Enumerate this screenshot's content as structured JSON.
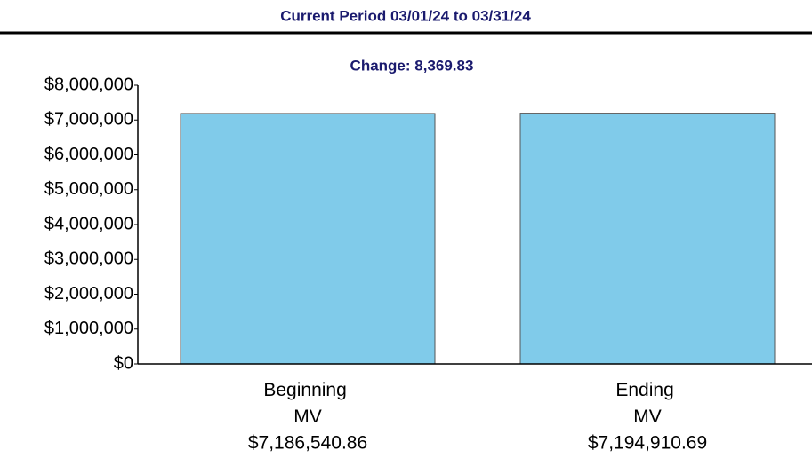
{
  "chart_data": {
    "type": "bar",
    "title": "Current Period 03/01/24 to 03/31/24",
    "subtitle": "Change: 8,369.83",
    "categories": [
      "Beginning MV",
      "Ending MV"
    ],
    "values": [
      7186540.86,
      7194910.69
    ],
    "value_labels": [
      "$7,186,540.86",
      "$7,194,910.69"
    ],
    "color": "#80cbea",
    "ylim": [
      0,
      8000000
    ],
    "yticks": [
      {
        "value": 0,
        "label": "$0"
      },
      {
        "value": 1000000,
        "label": "$1,000,000"
      },
      {
        "value": 2000000,
        "label": "$2,000,000"
      },
      {
        "value": 3000000,
        "label": "$3,000,000"
      },
      {
        "value": 4000000,
        "label": "$4,000,000"
      },
      {
        "value": 5000000,
        "label": "$5,000,000"
      },
      {
        "value": 6000000,
        "label": "$6,000,000"
      },
      {
        "value": 7000000,
        "label": "$7,000,000"
      },
      {
        "value": 8000000,
        "label": "$8,000,000"
      }
    ],
    "grid": false
  }
}
